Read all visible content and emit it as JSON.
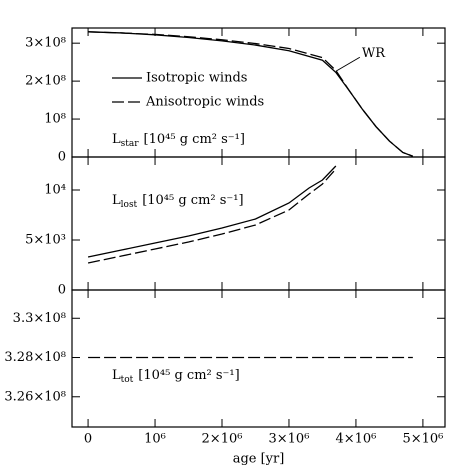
{
  "chart_data": [
    {
      "type": "line",
      "panel_label": {
        "symbol": "L",
        "subscript": "star",
        "units": "[10⁴⁵ g cm² s⁻¹]"
      },
      "x": [
        0,
        500000,
        1000000,
        1500000,
        2000000,
        2500000,
        3000000,
        3500000,
        3700000,
        3900000,
        4100000,
        4300000,
        4500000,
        4700000,
        4850000
      ],
      "series": [
        {
          "name": "Isotropic winds",
          "color": "#000000",
          "linestyle": "solid",
          "values": [
            330000000,
            327000000,
            322000000,
            315000000,
            306000000,
            295000000,
            280000000,
            255000000,
            223000000,
            175000000,
            125000000,
            80000000,
            42000000,
            12000000,
            2000000
          ]
        },
        {
          "name": "Anisotropic winds",
          "color": "#000000",
          "linestyle": "dashed",
          "values": [
            330000000,
            327000000,
            323000000,
            317000000,
            309000000,
            299000000,
            286000000,
            262000000,
            228000000,
            175000000,
            125000000,
            80000000,
            42000000,
            12000000,
            2000000
          ]
        }
      ],
      "annotations": [
        {
          "text": "WR",
          "x": 3700000,
          "y": 226000000
        }
      ],
      "xlim": [
        -240000,
        5330000
      ],
      "xticks": [
        0,
        1000000,
        2000000,
        3000000,
        4000000,
        5000000
      ],
      "ylim": [
        0,
        340000000
      ],
      "yticks": [
        0,
        {
          "value": 100000000,
          "label": "10⁸"
        },
        {
          "value": 200000000,
          "label": "2×10⁸"
        },
        {
          "value": 300000000,
          "label": "3×10⁸"
        }
      ]
    },
    {
      "type": "line",
      "panel_label": {
        "symbol": "L",
        "subscript": "lost",
        "units": "[10⁴⁵ g cm² s⁻¹]"
      },
      "x": [
        0,
        500000,
        1000000,
        1500000,
        2000000,
        2500000,
        3000000,
        3300000,
        3500000,
        3700000
      ],
      "series": [
        {
          "color": "#000000",
          "linestyle": "solid",
          "values": [
            3300,
            4000,
            4700,
            5400,
            6200,
            7100,
            8700,
            10200,
            11000,
            12400
          ]
        },
        {
          "color": "#000000",
          "linestyle": "dashed",
          "values": [
            2700,
            3400,
            4100,
            4800,
            5600,
            6500,
            8000,
            9600,
            10600,
            12100
          ]
        }
      ],
      "xlim": [
        -240000,
        5330000
      ],
      "xticks": [
        0,
        1000000,
        2000000,
        3000000,
        4000000,
        5000000
      ],
      "ylim": [
        0,
        13300
      ],
      "yticks": [
        0,
        {
          "value": 5000,
          "label": "5×10³"
        },
        {
          "value": 10000,
          "label": "10⁴"
        }
      ]
    },
    {
      "type": "line",
      "panel_label": {
        "symbol": "L",
        "subscript": "tot",
        "units": "[10⁴⁵ g cm² s⁻¹]"
      },
      "x": [
        0,
        4850000
      ],
      "series": [
        {
          "color": "#000000",
          "linestyle": "dashed",
          "values": [
            328000000,
            328000000
          ]
        }
      ],
      "x_label": "age [yr]",
      "xlim": [
        -240000,
        5330000
      ],
      "xticks": [
        {
          "value": 0,
          "label": "0"
        },
        {
          "value": 1000000,
          "label": "10⁶"
        },
        {
          "value": 2000000,
          "label": "2×10⁶"
        },
        {
          "value": 3000000,
          "label": "3×10⁶"
        },
        {
          "value": 4000000,
          "label": "4×10⁶"
        },
        {
          "value": 5000000,
          "label": "5×10⁶"
        }
      ],
      "ylim": [
        324460000,
        331440000
      ],
      "yticks": [
        {
          "value": 326000000,
          "label": "3.26×10⁸"
        },
        {
          "value": 328000000,
          "label": "3.28×10⁸"
        },
        {
          "value": 330000000,
          "label": "3.3×10⁸"
        }
      ]
    }
  ]
}
